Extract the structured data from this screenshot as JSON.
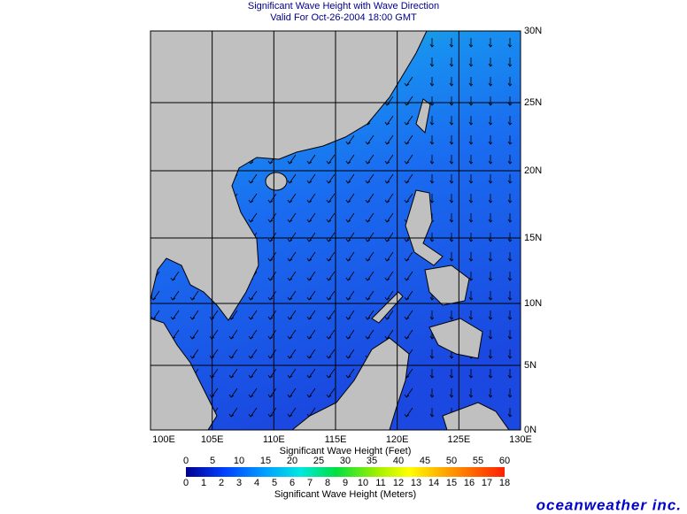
{
  "header": {
    "title": "Significant Wave Height with Wave Direction",
    "subtitle": "Valid For Oct-26-2004 18:00 GMT"
  },
  "map": {
    "longitude_labels": [
      "100E",
      "105E",
      "110E",
      "115E",
      "120E",
      "125E",
      "130E"
    ],
    "latitude_labels": [
      "30N",
      "25N",
      "20N",
      "15N",
      "10N",
      "5N",
      "0N"
    ]
  },
  "colorbar": {
    "feet_label": "Significant Wave Height (Feet)",
    "feet_ticks": [
      0,
      5,
      10,
      15,
      20,
      25,
      30,
      35,
      40,
      45,
      50,
      55,
      60
    ],
    "meters_label": "Significant Wave Height (Meters)",
    "meters_ticks": [
      0,
      1,
      2,
      3,
      4,
      5,
      6,
      7,
      8,
      9,
      10,
      11,
      12,
      13,
      14,
      15,
      16,
      17,
      18
    ]
  },
  "brand": "oceanweather inc."
}
